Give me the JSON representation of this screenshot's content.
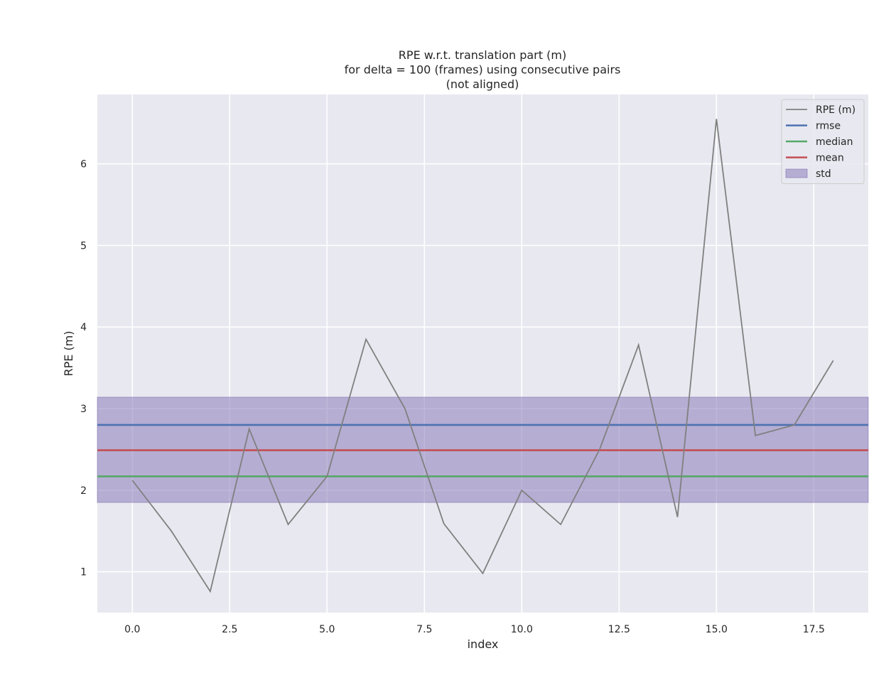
{
  "chart_data": {
    "type": "line",
    "title": [
      "RPE w.r.t. translation part (m)",
      "for delta = 100 (frames) using consecutive pairs",
      "(not aligned)"
    ],
    "xlabel": "index",
    "ylabel": "RPE (m)",
    "xlim": [
      -0.9,
      18.9
    ],
    "ylim": [
      0.5,
      6.85
    ],
    "xticks": [
      0.0,
      2.5,
      5.0,
      7.5,
      10.0,
      12.5,
      15.0,
      17.5
    ],
    "xtick_labels": [
      "0.0",
      "2.5",
      "5.0",
      "7.5",
      "10.0",
      "12.5",
      "15.0",
      "17.5"
    ],
    "yticks": [
      1,
      2,
      3,
      4,
      5,
      6
    ],
    "ytick_labels": [
      "1",
      "2",
      "3",
      "4",
      "5",
      "6"
    ],
    "grid": true,
    "legend_position": "top-right",
    "background": "#e8e8f0",
    "series": [
      {
        "name": "RPE (m)",
        "kind": "line",
        "color": "#808080",
        "x": [
          0,
          1,
          2,
          3,
          4,
          5,
          6,
          7,
          8,
          9,
          10,
          11,
          12,
          13,
          14,
          15,
          16,
          17,
          18
        ],
        "y": [
          2.12,
          1.5,
          0.76,
          2.75,
          1.58,
          2.17,
          3.85,
          3.0,
          1.59,
          0.98,
          2.0,
          1.58,
          2.5,
          3.78,
          1.67,
          6.55,
          2.67,
          2.8,
          3.59
        ]
      },
      {
        "name": "rmse",
        "kind": "hline",
        "color": "#4c72b0",
        "value": 2.8
      },
      {
        "name": "median",
        "kind": "hline",
        "color": "#55a868",
        "value": 2.17
      },
      {
        "name": "mean",
        "kind": "hline",
        "color": "#c44e52",
        "value": 2.49
      },
      {
        "name": "std",
        "kind": "band",
        "color": "#8172b3",
        "range": [
          1.85,
          3.14
        ]
      }
    ]
  }
}
